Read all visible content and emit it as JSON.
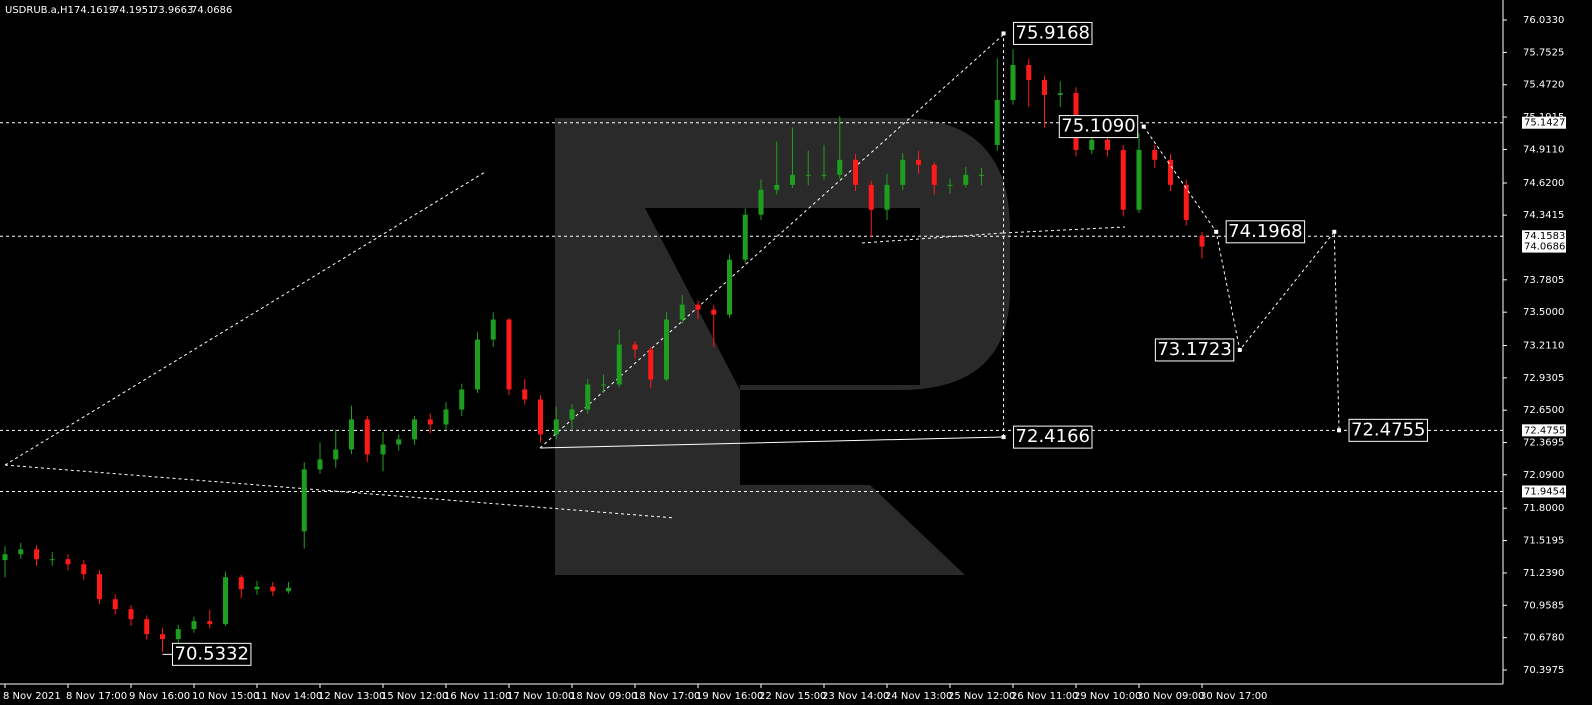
{
  "chart_data": {
    "type": "candlestick",
    "symbol": "USDRUB.a,H1",
    "categories": [
      "8 Nov 2021",
      null,
      null,
      null,
      "8 Nov 17:00",
      null,
      null,
      null,
      "9 Nov 16:00",
      null,
      null,
      null,
      "10 Nov 15:00",
      null,
      null,
      null,
      "11 Nov 14:00",
      null,
      null,
      null,
      "12 Nov 13:00",
      null,
      null,
      null,
      "15 Nov 12:00",
      null,
      null,
      null,
      "16 Nov 11:00",
      null,
      null,
      null,
      "17 Nov 10:00",
      null,
      null,
      null,
      "18 Nov 09:00",
      null,
      null,
      null,
      "18 Nov 17:00",
      null,
      null,
      null,
      "19 Nov 16:00",
      null,
      null,
      null,
      "22 Nov 15:00",
      null,
      null,
      null,
      "23 Nov 14:00",
      null,
      null,
      null,
      "24 Nov 13:00",
      null,
      null,
      null,
      "25 Nov 12:00",
      null,
      null,
      null,
      "26 Nov 11:00",
      null,
      null,
      null,
      "29 Nov 10:00",
      null,
      null,
      null,
      "30 Nov 09:00",
      null,
      null,
      null,
      "30 Nov 17:00"
    ],
    "open": [
      71.35,
      71.401,
      71.444,
      71.358,
      71.358,
      71.314,
      71.228,
      71.011,
      70.925,
      70.838,
      70.708,
      70.665,
      70.752,
      70.821,
      70.795,
      71.202,
      71.098,
      71.12,
      71.08,
      71.6,
      72.137,
      72.223,
      72.31,
      72.57,
      72.267,
      72.353,
      72.397,
      72.57,
      72.526,
      72.656,
      72.83,
      73.262,
      73.436,
      72.83,
      72.743,
      72.44,
      72.57,
      72.656,
      72.873,
      72.873,
      73.219,
      73.176,
      72.916,
      73.436,
      73.565,
      73.522,
      73.479,
      73.955,
      74.345,
      74.561,
      74.604,
      74.691,
      74.691,
      74.691,
      74.821,
      74.604,
      74.388,
      74.604,
      74.821,
      74.778,
      74.604,
      74.604,
      74.691,
      74.95,
      75.34,
      75.643,
      75.513,
      75.384,
      75.4,
      74.907,
      74.994,
      74.907,
      74.388,
      74.907,
      74.821,
      74.604,
      74.1619
    ],
    "high": [
      71.47,
      71.5,
      71.48,
      71.42,
      71.4,
      71.35,
      71.26,
      71.05,
      70.96,
      70.87,
      70.76,
      70.79,
      70.86,
      70.92,
      71.25,
      71.22,
      71.17,
      71.16,
      71.16,
      72.2,
      72.37,
      72.48,
      72.69,
      72.6,
      72.46,
      72.44,
      72.6,
      72.62,
      72.72,
      72.88,
      73.33,
      73.5,
      73.45,
      72.92,
      72.78,
      72.68,
      72.7,
      72.92,
      72.96,
      73.35,
      73.25,
      73.2,
      73.5,
      73.65,
      73.6,
      73.56,
      74.0,
      74.4,
      74.65,
      74.98,
      75.1,
      74.9,
      74.95,
      75.2,
      74.87,
      74.64,
      74.7,
      74.88,
      74.9,
      74.8,
      74.66,
      74.76,
      74.75,
      75.7,
      75.78,
      75.7,
      75.55,
      75.5,
      75.45,
      75.1,
      75.05,
      74.95,
      75.05,
      74.95,
      74.87,
      74.65,
      74.1951
    ],
    "low": [
      71.2,
      71.36,
      71.3,
      71.3,
      71.26,
      71.18,
      70.97,
      70.88,
      70.78,
      70.66,
      70.55,
      70.63,
      70.72,
      70.76,
      70.78,
      71.02,
      71.05,
      71.04,
      71.06,
      71.45,
      72.1,
      72.15,
      72.27,
      72.2,
      72.12,
      72.3,
      72.35,
      72.45,
      72.48,
      72.6,
      72.8,
      73.2,
      72.78,
      72.7,
      72.37,
      72.4,
      72.48,
      72.62,
      72.8,
      72.85,
      73.1,
      72.84,
      72.9,
      73.4,
      73.44,
      73.2,
      73.45,
      73.92,
      74.3,
      74.52,
      74.58,
      74.6,
      74.65,
      74.66,
      74.55,
      74.15,
      74.3,
      74.56,
      74.7,
      74.52,
      74.53,
      74.58,
      74.6,
      74.9,
      75.3,
      75.28,
      75.1,
      75.28,
      74.85,
      74.87,
      74.85,
      74.33,
      74.36,
      74.75,
      74.55,
      74.25,
      73.9663
    ],
    "close": [
      71.401,
      71.444,
      71.358,
      71.358,
      71.314,
      71.228,
      71.011,
      70.925,
      70.838,
      70.708,
      70.665,
      70.752,
      70.821,
      70.795,
      71.202,
      71.098,
      71.12,
      71.08,
      71.11,
      72.137,
      72.223,
      72.31,
      72.57,
      72.267,
      72.353,
      72.397,
      72.57,
      72.526,
      72.656,
      72.83,
      73.262,
      73.436,
      72.83,
      72.743,
      72.44,
      72.57,
      72.656,
      72.873,
      72.873,
      73.219,
      73.176,
      72.916,
      73.436,
      73.565,
      73.522,
      73.479,
      73.955,
      74.345,
      74.561,
      74.604,
      74.691,
      74.691,
      74.691,
      74.821,
      74.604,
      74.388,
      74.604,
      74.821,
      74.778,
      74.604,
      74.604,
      74.691,
      74.691,
      75.34,
      75.643,
      75.513,
      75.384,
      75.4,
      74.907,
      74.994,
      74.907,
      74.388,
      74.907,
      74.821,
      74.604,
      74.3,
      74.0686
    ],
    "up_color": "#1e9e1e",
    "down_color": "#ff1a1a",
    "ylim": [
      70.276,
      76.172
    ],
    "yticks": [
      {
        "value": 76.033,
        "label": "76.0330"
      },
      75.7525,
      {
        "value": 75.472,
        "label": "75.4720"
      },
      75.1915,
      {
        "value": 74.911,
        "label": "74.9110"
      },
      {
        "value": 74.62,
        "label": "74.6200"
      },
      74.3415,
      73.7805,
      {
        "value": 73.5,
        "label": "73.5000"
      },
      {
        "value": 73.211,
        "label": "73.2110"
      },
      72.9305,
      {
        "value": 72.65,
        "label": "72.6500"
      },
      72.3695,
      {
        "value": 72.09,
        "label": "72.0900"
      },
      {
        "value": 71.8,
        "label": "71.8000"
      },
      71.5195,
      {
        "value": 71.239,
        "label": "71.2390"
      },
      70.9585,
      {
        "value": 70.678,
        "label": "70.6780"
      },
      70.3975
    ],
    "levels": [
      75.1427,
      74.1583,
      72.4755,
      71.9454
    ],
    "low_label": {
      "x": 10,
      "value": 70.5332
    },
    "projection": {
      "x": [
        63.4,
        63.4
      ],
      "values": [
        72.4166,
        75.9168
      ]
    },
    "forecast": {
      "x": [
        72.3,
        76.9,
        78.4,
        84.4,
        84.7
      ],
      "values": [
        75.109,
        74.1968,
        73.1723,
        74.1968,
        72.4755
      ],
      "value_labels": [
        "75.1090",
        "74.1968",
        "73.1723",
        null,
        "72.4755"
      ]
    }
  }
}
